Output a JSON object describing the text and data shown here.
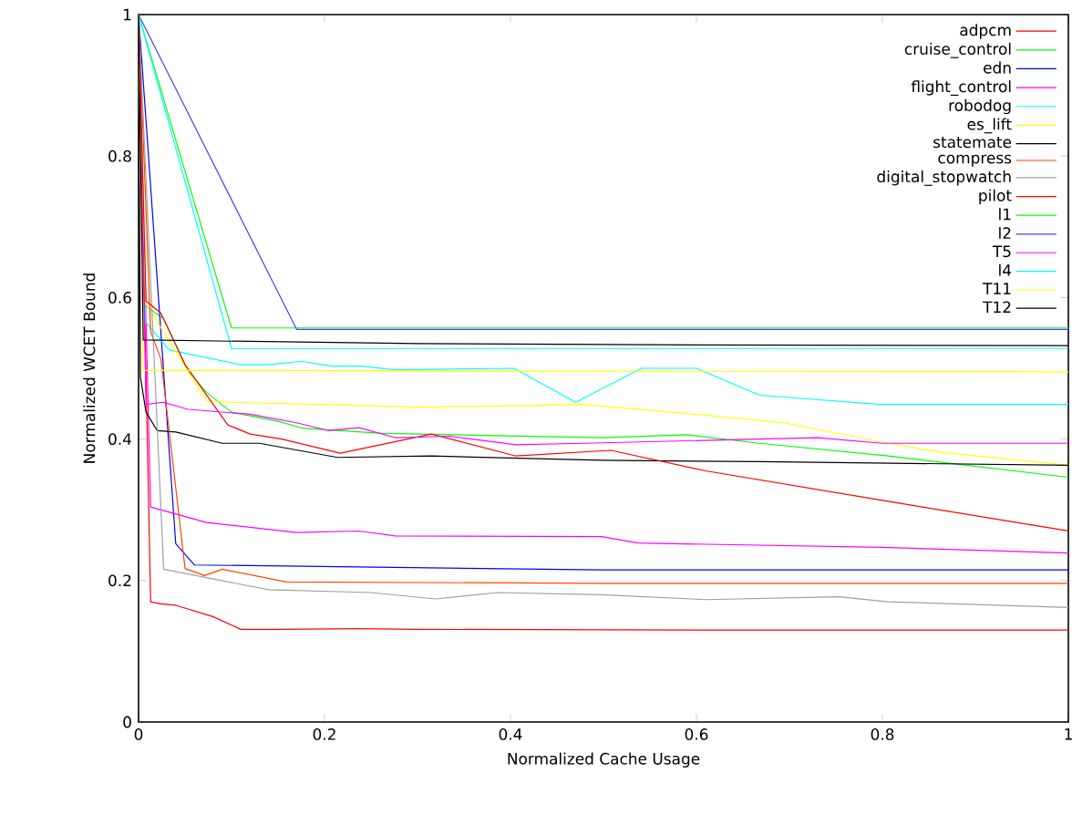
{
  "chart_data": {
    "type": "line",
    "xlabel": "Normalized Cache Usage",
    "ylabel": "Normalized WCET Bound",
    "xlim": [
      0,
      1
    ],
    "ylim": [
      0,
      1
    ],
    "xticks": [
      0,
      0.2,
      0.4,
      0.6,
      0.8,
      1
    ],
    "yticks": [
      0,
      0.2,
      0.4,
      0.6,
      0.8,
      1
    ],
    "legend": "top right",
    "series": [
      {
        "name": "adpcm",
        "color": "#ff0000",
        "x": [
          0,
          0.013,
          0.024,
          0.04,
          0.08,
          0.11,
          0.15,
          0.235,
          0.3,
          0.6,
          1
        ],
        "values": [
          1,
          0.17,
          0.167,
          0.165,
          0.149,
          0.131,
          0.131,
          0.132,
          0.131,
          0.13,
          0.13
        ]
      },
      {
        "name": "cruise_control",
        "color": "#00ff00",
        "x": [
          0,
          0.008,
          0.027,
          0.053,
          0.073,
          0.1,
          0.15,
          0.178,
          0.263,
          0.498,
          0.59,
          0.668,
          0.806,
          1
        ],
        "values": [
          1,
          0.588,
          0.57,
          0.497,
          0.466,
          0.438,
          0.425,
          0.415,
          0.408,
          0.402,
          0.406,
          0.394,
          0.376,
          0.346
        ]
      },
      {
        "name": "edn",
        "color": "#0000ff",
        "x": [
          0,
          0.04,
          0.06,
          0.498,
          1
        ],
        "values": [
          1,
          0.252,
          0.222,
          0.215,
          0.215
        ]
      },
      {
        "name": "flight_control",
        "color": "#ff00ff",
        "x": [
          0,
          0.013,
          0.073,
          0.17,
          0.237,
          0.276,
          0.498,
          0.537,
          0.798,
          1
        ],
        "values": [
          1,
          0.304,
          0.282,
          0.268,
          0.27,
          0.263,
          0.262,
          0.253,
          0.247,
          0.239
        ]
      },
      {
        "name": "robodog",
        "color": "#00ffff",
        "x": [
          0,
          0.008,
          0.033,
          0.11,
          0.14,
          0.175,
          0.208,
          0.24,
          0.276,
          0.404,
          0.47,
          0.541,
          0.6,
          0.668,
          0.798,
          1
        ],
        "values": [
          1,
          0.565,
          0.526,
          0.505,
          0.505,
          0.51,
          0.503,
          0.503,
          0.498,
          0.5,
          0.452,
          0.5,
          0.5,
          0.462,
          0.449,
          0.449
        ]
      },
      {
        "name": "es_lift",
        "color": "#ffff00",
        "x": [
          0,
          0.008,
          0.073,
          0.1,
          0.25,
          0.3,
          0.404,
          0.478,
          0.59,
          0.694,
          0.806,
          0.865,
          1
        ],
        "values": [
          1,
          0.591,
          0.454,
          0.452,
          0.447,
          0.445,
          0.447,
          0.449,
          0.436,
          0.423,
          0.394,
          0.381,
          0.363
        ]
      },
      {
        "name": "statemate",
        "color": "#000000",
        "x": [
          0,
          0.002,
          0.008,
          0.02,
          0.04,
          0.09,
          0.13,
          0.214,
          0.315,
          0.498,
          0.67,
          1
        ],
        "values": [
          1,
          0.488,
          0.438,
          0.412,
          0.41,
          0.394,
          0.394,
          0.374,
          0.376,
          0.37,
          0.368,
          0.363
        ]
      },
      {
        "name": "compress",
        "color": "#ff4500",
        "x": [
          0,
          0.013,
          0.024,
          0.05,
          0.071,
          0.09,
          0.159,
          0.498,
          1
        ],
        "values": [
          1,
          0.552,
          0.513,
          0.217,
          0.207,
          0.216,
          0.198,
          0.196,
          0.196
        ]
      },
      {
        "name": "digital_stopwatch",
        "color": "#a0a0a0",
        "x": [
          0,
          0.027,
          0.073,
          0.14,
          0.25,
          0.32,
          0.386,
          0.498,
          0.61,
          0.753,
          0.806,
          1
        ],
        "values": [
          1,
          0.216,
          0.204,
          0.187,
          0.183,
          0.174,
          0.183,
          0.18,
          0.173,
          0.177,
          0.17,
          0.162
        ]
      },
      {
        "name": "pilot",
        "color": "#ff0000",
        "x": [
          0,
          0.008,
          0.024,
          0.05,
          0.096,
          0.12,
          0.154,
          0.217,
          0.315,
          0.406,
          0.508,
          0.61,
          0.806,
          1
        ],
        "values": [
          1,
          0.595,
          0.578,
          0.505,
          0.42,
          0.407,
          0.4,
          0.38,
          0.407,
          0.376,
          0.384,
          0.355,
          0.312,
          0.27
        ]
      },
      {
        "name": "l1",
        "color": "#00ff00",
        "x": [
          0,
          0.1,
          1
        ],
        "values": [
          1,
          0.557,
          0.557
        ]
      },
      {
        "name": "l2",
        "color": "#4040ff",
        "x": [
          0,
          0.17,
          1
        ],
        "values": [
          1,
          0.555,
          0.555
        ]
      },
      {
        "name": "T5",
        "color": "#ff00ff",
        "x": [
          0,
          0.008,
          0.027,
          0.053,
          0.12,
          0.17,
          0.204,
          0.237,
          0.276,
          0.335,
          0.406,
          0.478,
          0.73,
          0.8,
          1
        ],
        "values": [
          1,
          0.449,
          0.452,
          0.442,
          0.435,
          0.423,
          0.412,
          0.416,
          0.402,
          0.404,
          0.392,
          0.394,
          0.402,
          0.394,
          0.394
        ]
      },
      {
        "name": "l4",
        "color": "#00ffff",
        "x": [
          0,
          0.1,
          1
        ],
        "values": [
          1,
          0.528,
          0.528
        ]
      },
      {
        "name": "T11",
        "color": "#ffff00",
        "x": [
          0,
          0.005,
          1
        ],
        "values": [
          1,
          0.497,
          0.495
        ]
      },
      {
        "name": "T12",
        "color": "#000000",
        "x": [
          0,
          0.005,
          0.3,
          0.6,
          1
        ],
        "values": [
          1,
          0.54,
          0.535,
          0.533,
          0.532
        ]
      }
    ]
  }
}
